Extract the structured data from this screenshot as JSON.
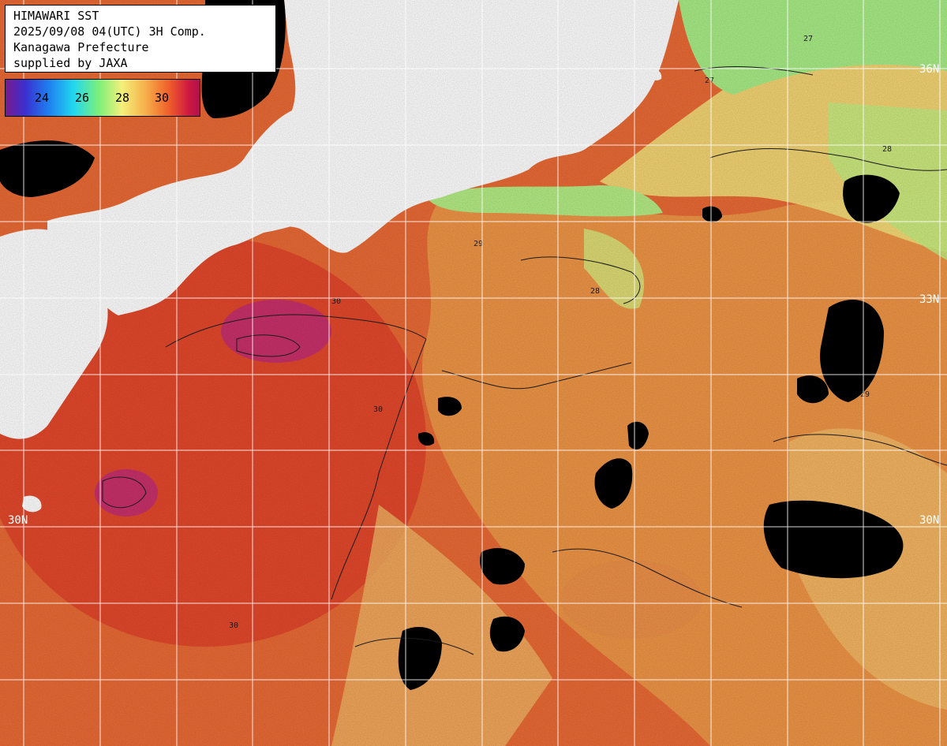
{
  "title": {
    "line1": "HIMAWARI SST",
    "line2": "2025/09/08 04(UTC) 3H Comp.",
    "line3": "Kanagawa Prefecture",
    "line4": "supplied by JAXA"
  },
  "colorbar": {
    "ticks": [
      "24",
      "26",
      "28",
      "30"
    ],
    "unit_note": ""
  },
  "latitude_labels": [
    "36N",
    "33N",
    "30N",
    "30N"
  ],
  "contour_labels": [
    "27",
    "28",
    "29",
    "30"
  ],
  "colors": {
    "land": "#ffffff",
    "cloud": "#000000",
    "sea_warm": "#e8552a",
    "sea_hot": "#d0306a",
    "sea_mid": "#f5a550",
    "sea_cool": "#b8e878",
    "grid": "#ffffff"
  }
}
